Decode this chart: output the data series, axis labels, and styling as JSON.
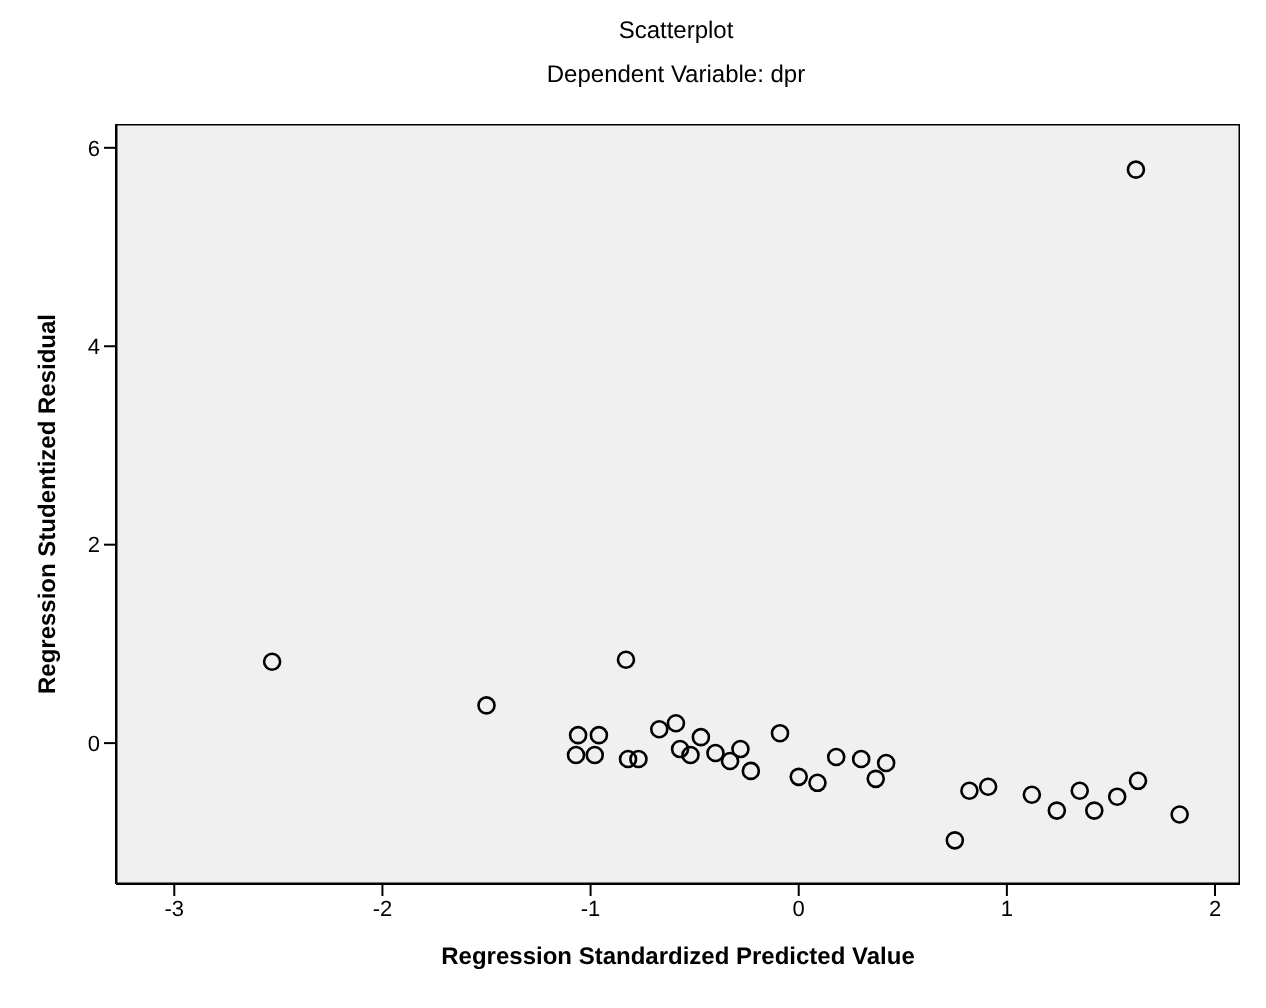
{
  "chart_data": {
    "type": "scatter",
    "title": "Scatterplot",
    "subtitle": "Dependent Variable: dpr",
    "xlabel": "Regression Standardized Predicted Value",
    "ylabel": "Regression Studentized Residual",
    "marker": "circle",
    "grid": false,
    "legend": false,
    "xlim": [
      -3.28,
      2.12
    ],
    "xticks": [
      -3,
      -2,
      -1,
      0,
      1,
      2
    ],
    "ylim": [
      -1.42,
      6.24
    ],
    "yticks": [
      0,
      2,
      4,
      6
    ],
    "series": [
      {
        "color": "#000000",
        "x": [
          -2.53,
          -1.5,
          -0.83,
          -1.06,
          -0.96,
          -1.07,
          -0.98,
          -0.82,
          -0.77,
          -0.67,
          -0.59,
          -0.57,
          -0.52,
          -0.47,
          -0.4,
          -0.33,
          -0.28,
          -0.23,
          -0.09,
          0.0,
          0.09,
          0.18,
          0.3,
          0.37,
          0.42,
          0.75,
          0.82,
          0.91,
          1.12,
          1.24,
          1.35,
          1.42,
          1.53,
          1.63,
          1.83,
          1.62
        ],
        "values": [
          0.82,
          0.38,
          0.84,
          0.08,
          0.08,
          -0.12,
          -0.12,
          -0.16,
          -0.16,
          0.14,
          0.2,
          -0.06,
          -0.12,
          0.06,
          -0.1,
          -0.18,
          -0.06,
          -0.28,
          0.1,
          -0.34,
          -0.4,
          -0.14,
          -0.16,
          -0.36,
          -0.2,
          -0.98,
          -0.48,
          -0.44,
          -0.52,
          -0.68,
          -0.48,
          -0.68,
          -0.54,
          -0.38,
          -0.72,
          5.78
        ]
      }
    ]
  }
}
